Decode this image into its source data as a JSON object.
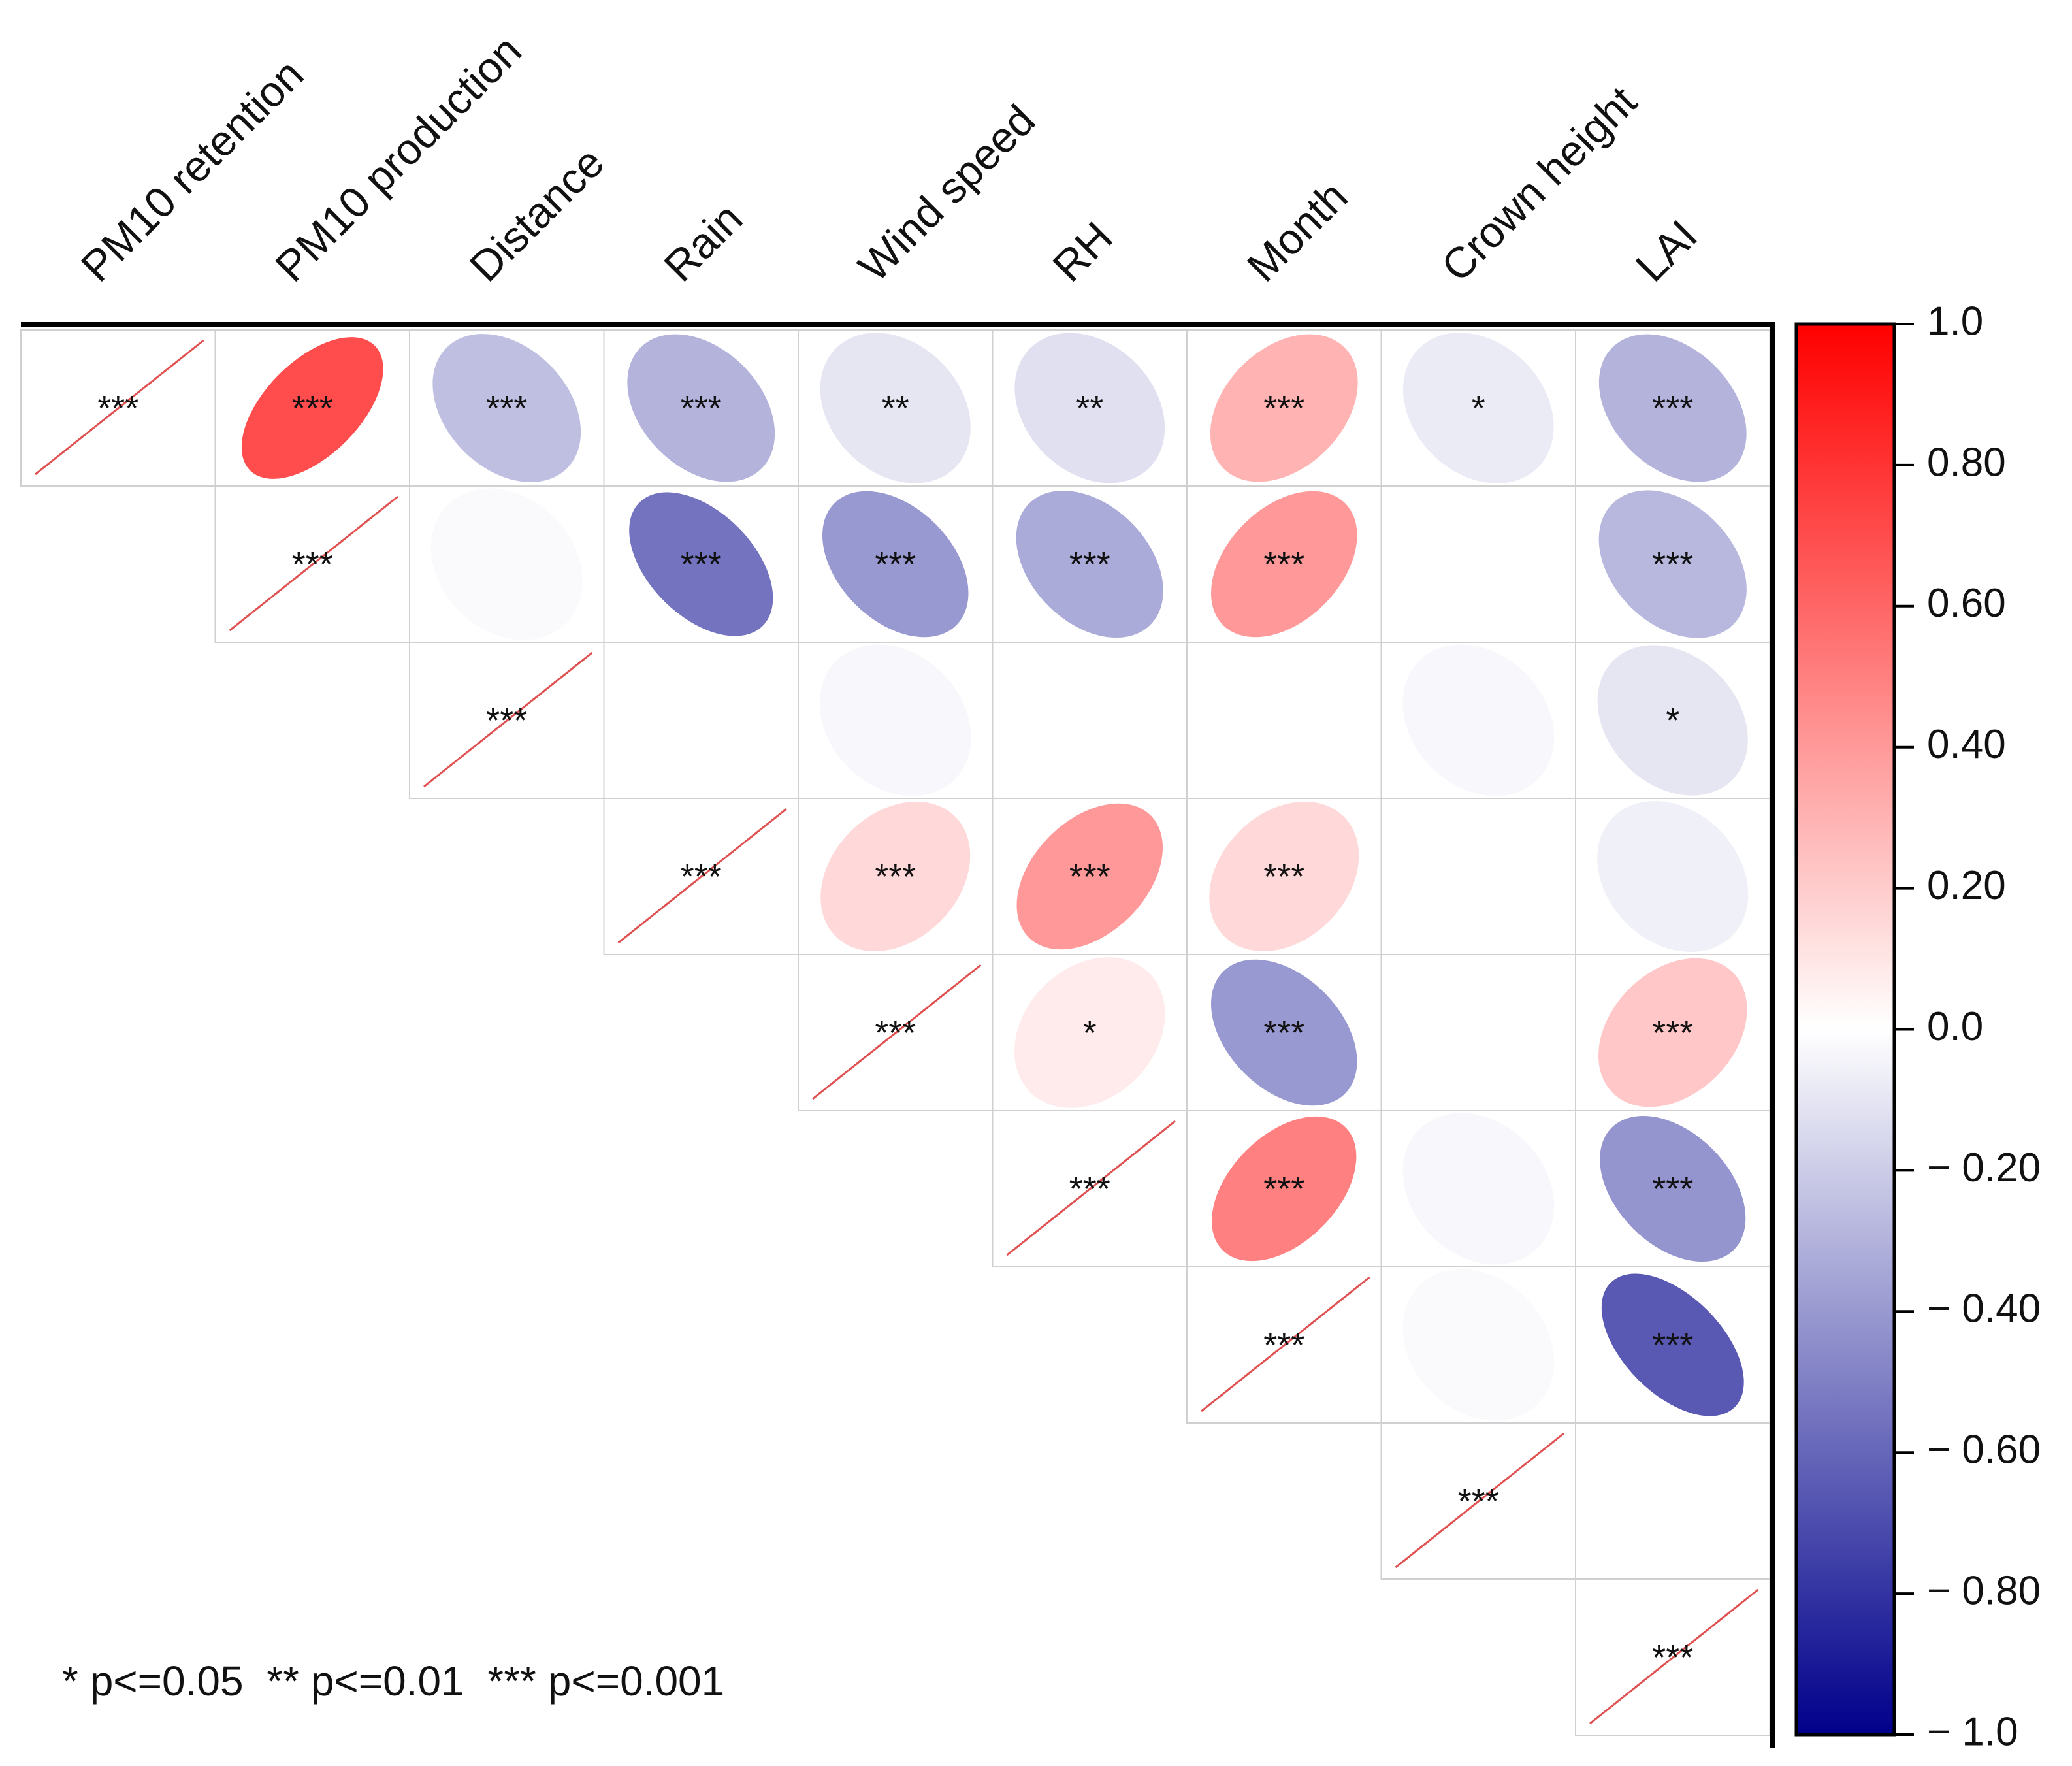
{
  "chart_data": {
    "type": "heatmap",
    "subtype": "correlation-ellipse-upper-triangle",
    "variables": [
      "PM10 retention",
      "PM10 production",
      "Distance",
      "Rain",
      "Wind speed",
      "RH",
      "Month",
      "Crown height",
      "LAI"
    ],
    "matrix": [
      [
        1.0,
        0.7,
        -0.25,
        -0.3,
        -0.1,
        -0.12,
        0.3,
        -0.08,
        -0.3
      ],
      [
        null,
        1.0,
        -0.02,
        -0.55,
        -0.4,
        -0.33,
        0.4,
        0.0,
        -0.28
      ],
      [
        null,
        null,
        1.0,
        0.0,
        -0.03,
        0.0,
        0.0,
        -0.03,
        -0.1
      ],
      [
        null,
        null,
        null,
        1.0,
        0.15,
        0.4,
        0.15,
        0.0,
        -0.06
      ],
      [
        null,
        null,
        null,
        null,
        1.0,
        0.08,
        -0.4,
        0.0,
        0.22
      ],
      [
        null,
        null,
        null,
        null,
        null,
        1.0,
        0.5,
        -0.03,
        -0.42
      ],
      [
        null,
        null,
        null,
        null,
        null,
        null,
        1.0,
        -0.02,
        -0.65
      ],
      [
        null,
        null,
        null,
        null,
        null,
        null,
        null,
        1.0,
        0.0
      ],
      [
        null,
        null,
        null,
        null,
        null,
        null,
        null,
        null,
        1.0
      ]
    ],
    "significance": [
      [
        "***",
        "***",
        "***",
        "***",
        "**",
        "**",
        "***",
        "*",
        "***"
      ],
      [
        "",
        "***",
        "",
        "***",
        "***",
        "***",
        "***",
        "",
        "***"
      ],
      [
        "",
        "",
        "***",
        "",
        "",
        "",
        "",
        "",
        "*"
      ],
      [
        "",
        "",
        "",
        "***",
        "***",
        "***",
        "***",
        "",
        ""
      ],
      [
        "",
        "",
        "",
        "",
        "***",
        "*",
        "***",
        "",
        "***"
      ],
      [
        "",
        "",
        "",
        "",
        "",
        "***",
        "***",
        "",
        "***"
      ],
      [
        "",
        "",
        "",
        "",
        "",
        "",
        "***",
        "",
        "***"
      ],
      [
        "",
        "",
        "",
        "",
        "",
        "",
        "",
        "***",
        ""
      ],
      [
        "",
        "",
        "",
        "",
        "",
        "",
        "",
        "",
        "***"
      ]
    ],
    "colorbar": {
      "range": [
        -1.0,
        1.0
      ],
      "ticks": [
        {
          "value": 1.0,
          "label": "1.0"
        },
        {
          "value": 0.8,
          "label": "0.80"
        },
        {
          "value": 0.6,
          "label": "0.60"
        },
        {
          "value": 0.4,
          "label": "0.40"
        },
        {
          "value": 0.2,
          "label": "0.20"
        },
        {
          "value": 0.0,
          "label": "0.0"
        },
        {
          "value": -0.2,
          "label": "− 0.20"
        },
        {
          "value": -0.4,
          "label": "− 0.40"
        },
        {
          "value": -0.6,
          "label": "− 0.60"
        },
        {
          "value": -0.8,
          "label": "− 0.80"
        },
        {
          "value": -1.0,
          "label": "− 1.0"
        }
      ],
      "colors": {
        "negative": "#00008b",
        "zero": "#ffffff",
        "positive": "#ff0000"
      }
    },
    "legend_text": "* p<=0.05  ** p<=0.01  *** p<=0.001",
    "diagonal_line_color": "#e05050",
    "grid_color": "#d0d0d0"
  }
}
